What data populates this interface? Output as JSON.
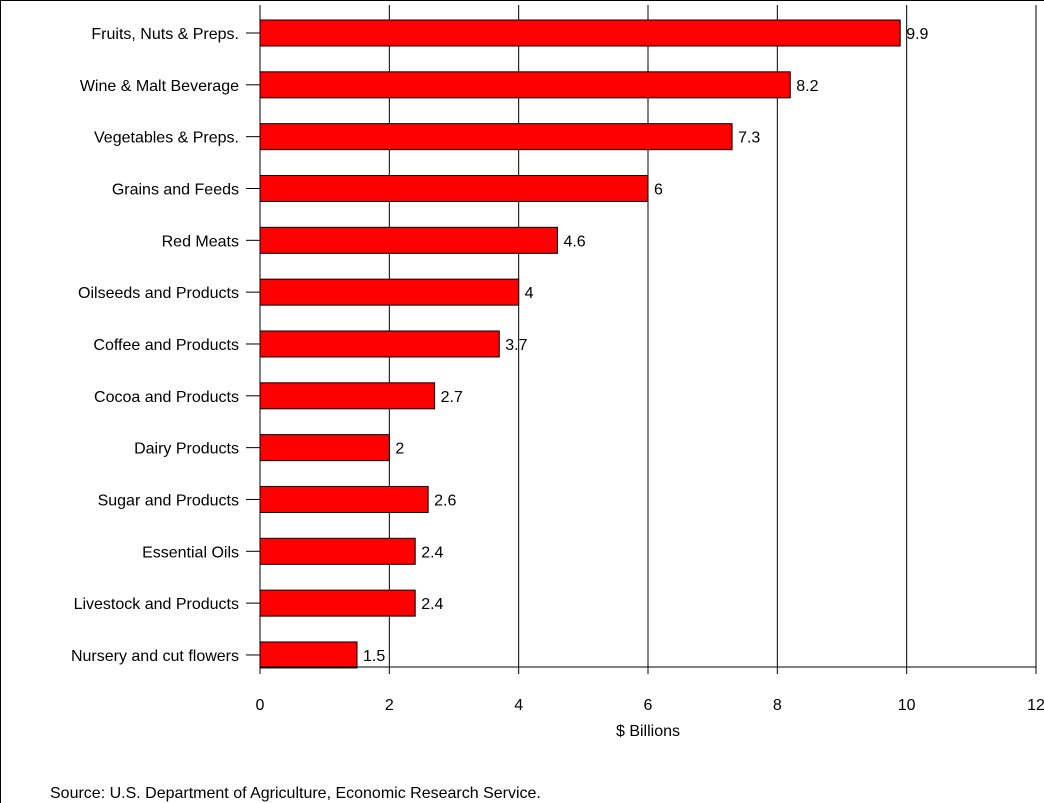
{
  "chart_data": {
    "type": "bar",
    "orientation": "horizontal",
    "categories": [
      "Fruits, Nuts & Preps.",
      "Wine & Malt Beverage",
      "Vegetables & Preps.",
      "Grains and Feeds",
      "Red Meats",
      "Oilseeds and Products",
      "Coffee and Products",
      "Cocoa and Products",
      "Dairy Products",
      "Sugar and Products",
      "Essential Oils",
      "Livestock and Products",
      "Nursery and cut flowers"
    ],
    "values": [
      9.9,
      8.2,
      7.3,
      6,
      4.6,
      4,
      3.7,
      2.7,
      2,
      2.6,
      2.4,
      2.4,
      1.5
    ],
    "value_labels": [
      "9.9",
      "8.2",
      "7.3",
      "6",
      "4.6",
      "4",
      "3.7",
      "2.7",
      "2",
      "2.6",
      "2.4",
      "2.4",
      "1.5"
    ],
    "xlabel": "$ Billions",
    "xlim": [
      0,
      12
    ],
    "xticks": [
      0,
      2,
      4,
      6,
      8,
      10,
      12
    ],
    "xtick_labels": [
      "0",
      "2",
      "4",
      "6",
      "8",
      "10",
      "12"
    ],
    "grid": "vertical",
    "legend": "none",
    "bar_color": "#ff0000"
  },
  "source": "Source: U.S. Department of Agriculture,  Economic Research Service."
}
